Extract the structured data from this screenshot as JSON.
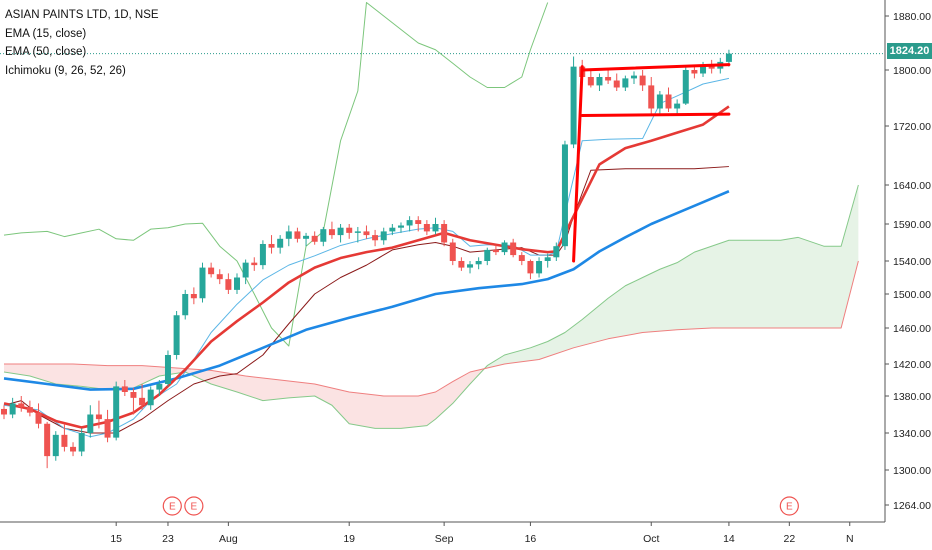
{
  "legend": {
    "title": "ASIAN PAINTS LTD, 1D, NSE",
    "ema15": "EMA (15, close)",
    "ema50": "EMA (50, close)",
    "ichimoku": "Ichimoku (9, 26, 52, 26)"
  },
  "last_price_label": "1824.20",
  "colors": {
    "up": "#26a69a",
    "down": "#ef5350",
    "ema15": "#e53935",
    "ema50": "#1e88e5",
    "conversion": "#5bb6e6",
    "base": "#8b1a1a",
    "lagging": "#7cc67c",
    "leading_a": "#86c98a",
    "leading_b": "#ef7f7f",
    "cloud_bull": "#e6f3e6",
    "cloud_bear": "#fbe3e3",
    "annotation": "#ff0000",
    "last_price": "#2b9b8c"
  },
  "chart_data": {
    "type": "candlestick",
    "title": "ASIAN PAINTS LTD, 1D, NSE",
    "y_axis": {
      "position": "right",
      "ticks": [
        1264,
        1300,
        1340,
        1380,
        1420,
        1460,
        1500,
        1540,
        1590,
        1640,
        1720,
        1800,
        1880
      ],
      "tick_labels": [
        "1264.00",
        "1300.00",
        "1340.00",
        "1380.00",
        "1420.00",
        "1460.00",
        "1500.00",
        "1540.00",
        "1590.00",
        "1640.00",
        "1720.00",
        "1800.00",
        "1880.00"
      ],
      "last_value": 1824.2
    },
    "x_axis": {
      "ticks": [
        {
          "label": "15",
          "bar": 13
        },
        {
          "label": "23",
          "bar": 19
        },
        {
          "label": "Aug",
          "bar": 26
        },
        {
          "label": "19",
          "bar": 40
        },
        {
          "label": "Sep",
          "bar": 51
        },
        {
          "label": "16",
          "bar": 61
        },
        {
          "label": "Oct",
          "bar": 75
        },
        {
          "label": "14",
          "bar": 84
        },
        {
          "label": "22",
          "bar": 91
        },
        {
          "label": "N",
          "bar": 98
        }
      ]
    },
    "earnings_markers": [
      {
        "label": "E",
        "bar": 19.5
      },
      {
        "label": "E",
        "bar": 22
      },
      {
        "label": "E",
        "bar": 91
      }
    ],
    "candles": [
      [
        1366,
        1370,
        1355,
        1360
      ],
      [
        1360,
        1378,
        1356,
        1372
      ],
      [
        1372,
        1380,
        1363,
        1368
      ],
      [
        1368,
        1375,
        1358,
        1362
      ],
      [
        1362,
        1372,
        1345,
        1350
      ],
      [
        1350,
        1352,
        1302,
        1315
      ],
      [
        1315,
        1342,
        1310,
        1338
      ],
      [
        1338,
        1350,
        1320,
        1325
      ],
      [
        1325,
        1330,
        1315,
        1320
      ],
      [
        1320,
        1345,
        1315,
        1340
      ],
      [
        1340,
        1370,
        1335,
        1360
      ],
      [
        1360,
        1375,
        1345,
        1355
      ],
      [
        1355,
        1365,
        1330,
        1335
      ],
      [
        1335,
        1398,
        1332,
        1392
      ],
      [
        1392,
        1400,
        1380,
        1385
      ],
      [
        1385,
        1390,
        1360,
        1378
      ],
      [
        1378,
        1395,
        1365,
        1370
      ],
      [
        1370,
        1392,
        1365,
        1388
      ],
      [
        1388,
        1400,
        1380,
        1395
      ],
      [
        1395,
        1435,
        1392,
        1430
      ],
      [
        1430,
        1480,
        1425,
        1475
      ],
      [
        1475,
        1505,
        1470,
        1500
      ],
      [
        1500,
        1508,
        1488,
        1495
      ],
      [
        1495,
        1538,
        1490,
        1532
      ],
      [
        1532,
        1538,
        1520,
        1524
      ],
      [
        1524,
        1530,
        1512,
        1518
      ],
      [
        1518,
        1525,
        1500,
        1505
      ],
      [
        1505,
        1525,
        1500,
        1520
      ],
      [
        1520,
        1542,
        1512,
        1538
      ],
      [
        1538,
        1545,
        1528,
        1535
      ],
      [
        1535,
        1568,
        1530,
        1563
      ],
      [
        1563,
        1575,
        1550,
        1558
      ],
      [
        1558,
        1575,
        1550,
        1570
      ],
      [
        1570,
        1588,
        1560,
        1580
      ],
      [
        1580,
        1585,
        1565,
        1570
      ],
      [
        1570,
        1578,
        1560,
        1574
      ],
      [
        1574,
        1580,
        1562,
        1566
      ],
      [
        1566,
        1586,
        1560,
        1583
      ],
      [
        1583,
        1593,
        1570,
        1575
      ],
      [
        1575,
        1590,
        1565,
        1585
      ],
      [
        1585,
        1590,
        1570,
        1578
      ],
      [
        1578,
        1586,
        1565,
        1580
      ],
      [
        1580,
        1588,
        1570,
        1575
      ],
      [
        1575,
        1582,
        1560,
        1568
      ],
      [
        1568,
        1585,
        1562,
        1580
      ],
      [
        1580,
        1590,
        1575,
        1585
      ],
      [
        1585,
        1592,
        1578,
        1588
      ],
      [
        1588,
        1600,
        1580,
        1595
      ],
      [
        1595,
        1600,
        1580,
        1590
      ],
      [
        1590,
        1595,
        1575,
        1580
      ],
      [
        1580,
        1598,
        1576,
        1590
      ],
      [
        1590,
        1595,
        1560,
        1565
      ],
      [
        1565,
        1570,
        1535,
        1540
      ],
      [
        1540,
        1545,
        1528,
        1532
      ],
      [
        1532,
        1540,
        1525,
        1536
      ],
      [
        1536,
        1545,
        1530,
        1540
      ],
      [
        1540,
        1558,
        1535,
        1555
      ],
      [
        1555,
        1562,
        1548,
        1552
      ],
      [
        1552,
        1568,
        1548,
        1565
      ],
      [
        1565,
        1570,
        1545,
        1548
      ],
      [
        1548,
        1552,
        1535,
        1540
      ],
      [
        1540,
        1542,
        1518,
        1525
      ],
      [
        1525,
        1545,
        1520,
        1540
      ],
      [
        1540,
        1550,
        1532,
        1545
      ],
      [
        1545,
        1565,
        1540,
        1560
      ],
      [
        1560,
        1700,
        1555,
        1695
      ],
      [
        1695,
        1820,
        1690,
        1805
      ],
      [
        1805,
        1815,
        1785,
        1790
      ],
      [
        1790,
        1800,
        1775,
        1778
      ],
      [
        1778,
        1795,
        1770,
        1790
      ],
      [
        1790,
        1800,
        1780,
        1785
      ],
      [
        1785,
        1795,
        1770,
        1775
      ],
      [
        1775,
        1792,
        1770,
        1788
      ],
      [
        1788,
        1798,
        1780,
        1792
      ],
      [
        1792,
        1800,
        1770,
        1778
      ],
      [
        1778,
        1790,
        1735,
        1745
      ],
      [
        1745,
        1770,
        1735,
        1765
      ],
      [
        1765,
        1775,
        1740,
        1745
      ],
      [
        1745,
        1758,
        1735,
        1752
      ],
      [
        1752,
        1805,
        1750,
        1800
      ],
      [
        1800,
        1808,
        1788,
        1795
      ],
      [
        1795,
        1812,
        1790,
        1808
      ],
      [
        1808,
        1815,
        1795,
        1802
      ],
      [
        1802,
        1818,
        1795,
        1812
      ],
      [
        1812,
        1830,
        1805,
        1824.2
      ]
    ],
    "ema15": [
      [
        0,
        1372
      ],
      [
        3,
        1366
      ],
      [
        6,
        1353
      ],
      [
        9,
        1346
      ],
      [
        12,
        1352
      ],
      [
        15,
        1362
      ],
      [
        18,
        1382
      ],
      [
        21,
        1413
      ],
      [
        24,
        1445
      ],
      [
        27,
        1468
      ],
      [
        30,
        1490
      ],
      [
        33,
        1514
      ],
      [
        36,
        1532
      ],
      [
        39,
        1544
      ],
      [
        42,
        1552
      ],
      [
        45,
        1558
      ],
      [
        48,
        1568
      ],
      [
        51,
        1578
      ],
      [
        54,
        1568
      ],
      [
        57,
        1562
      ],
      [
        60,
        1556
      ],
      [
        63,
        1552
      ],
      [
        64,
        1553
      ],
      [
        66,
        1600
      ],
      [
        69,
        1668
      ],
      [
        72,
        1690
      ],
      [
        75,
        1700
      ],
      [
        78,
        1711
      ],
      [
        81,
        1722
      ],
      [
        84,
        1748
      ]
    ],
    "ema50": [
      [
        0,
        1402
      ],
      [
        5,
        1395
      ],
      [
        10,
        1388
      ],
      [
        15,
        1389
      ],
      [
        20,
        1402
      ],
      [
        25,
        1418
      ],
      [
        30,
        1438
      ],
      [
        35,
        1458
      ],
      [
        40,
        1472
      ],
      [
        45,
        1485
      ],
      [
        50,
        1500
      ],
      [
        55,
        1507
      ],
      [
        60,
        1512
      ],
      [
        63,
        1518
      ],
      [
        66,
        1530
      ],
      [
        69,
        1553
      ],
      [
        72,
        1572
      ],
      [
        75,
        1590
      ],
      [
        78,
        1604
      ],
      [
        81,
        1618
      ],
      [
        84,
        1632
      ]
    ],
    "conversion": [
      [
        0,
        1370
      ],
      [
        4,
        1365
      ],
      [
        7,
        1345
      ],
      [
        10,
        1336
      ],
      [
        12,
        1340
      ],
      [
        15,
        1355
      ],
      [
        17,
        1375
      ],
      [
        20,
        1395
      ],
      [
        22,
        1425
      ],
      [
        24,
        1455
      ],
      [
        27,
        1488
      ],
      [
        30,
        1517
      ],
      [
        33,
        1535
      ],
      [
        36,
        1547
      ],
      [
        39,
        1561
      ],
      [
        42,
        1570
      ],
      [
        45,
        1577
      ],
      [
        48,
        1583
      ],
      [
        50,
        1585
      ],
      [
        52,
        1580
      ],
      [
        54,
        1560
      ],
      [
        56,
        1562
      ],
      [
        59,
        1561
      ],
      [
        61,
        1548
      ],
      [
        63,
        1548
      ],
      [
        64,
        1552
      ],
      [
        65,
        1602
      ],
      [
        67,
        1700
      ],
      [
        70,
        1702
      ],
      [
        74,
        1703
      ],
      [
        76,
        1752
      ],
      [
        78,
        1763
      ],
      [
        81,
        1780
      ],
      [
        84,
        1788
      ]
    ],
    "base_line": [
      [
        0,
        1370
      ],
      [
        2,
        1375
      ],
      [
        4,
        1360
      ],
      [
        7,
        1345
      ],
      [
        10,
        1340
      ],
      [
        13,
        1340
      ],
      [
        16,
        1355
      ],
      [
        19,
        1375
      ],
      [
        22,
        1395
      ],
      [
        25,
        1405
      ],
      [
        27,
        1408
      ],
      [
        30,
        1430
      ],
      [
        33,
        1465
      ],
      [
        36,
        1500
      ],
      [
        39,
        1520
      ],
      [
        42,
        1535
      ],
      [
        45,
        1555
      ],
      [
        48,
        1562
      ],
      [
        50,
        1565
      ],
      [
        52,
        1560
      ],
      [
        54,
        1552
      ],
      [
        58,
        1556
      ],
      [
        60,
        1558
      ],
      [
        62,
        1548
      ],
      [
        64,
        1548
      ],
      [
        65,
        1565
      ],
      [
        66,
        1600
      ],
      [
        68,
        1660
      ],
      [
        72,
        1662
      ],
      [
        76,
        1662
      ],
      [
        80,
        1662
      ],
      [
        84,
        1665
      ]
    ],
    "lagging_span": [
      [
        0,
        1575
      ],
      [
        2,
        1578
      ],
      [
        5,
        1580
      ],
      [
        7,
        1573
      ],
      [
        9,
        1578
      ],
      [
        11,
        1583
      ],
      [
        13,
        1570
      ],
      [
        15,
        1568
      ],
      [
        17,
        1583
      ],
      [
        19,
        1585
      ],
      [
        21,
        1590
      ],
      [
        23,
        1591
      ],
      [
        25,
        1560
      ],
      [
        27,
        1540
      ],
      [
        29,
        1500
      ],
      [
        31,
        1460
      ],
      [
        33,
        1440
      ],
      [
        35,
        1560
      ],
      [
        37,
        1580
      ],
      [
        39,
        1700
      ],
      [
        41,
        1770
      ],
      [
        42,
        1900
      ],
      [
        44,
        1880
      ],
      [
        46,
        1860
      ],
      [
        48,
        1840
      ],
      [
        50,
        1830
      ],
      [
        52,
        1810
      ],
      [
        54,
        1790
      ],
      [
        56,
        1775
      ],
      [
        58,
        1775
      ],
      [
        60,
        1790
      ],
      [
        61,
        1830
      ],
      [
        63,
        1900
      ]
    ],
    "leading_span_a": [
      [
        0,
        1410
      ],
      [
        3,
        1405
      ],
      [
        6,
        1395
      ],
      [
        9,
        1392
      ],
      [
        12,
        1388
      ],
      [
        15,
        1390
      ],
      [
        18,
        1405
      ],
      [
        21,
        1410
      ],
      [
        24,
        1395
      ],
      [
        27,
        1385
      ],
      [
        30,
        1375
      ],
      [
        33,
        1378
      ],
      [
        36,
        1380
      ],
      [
        38,
        1370
      ],
      [
        40,
        1350
      ],
      [
        43,
        1345
      ],
      [
        46,
        1345
      ],
      [
        49,
        1348
      ],
      [
        50,
        1355
      ],
      [
        52,
        1372
      ],
      [
        54,
        1395
      ],
      [
        56,
        1418
      ],
      [
        58,
        1430
      ],
      [
        61,
        1438
      ],
      [
        63,
        1445
      ],
      [
        65,
        1455
      ],
      [
        67,
        1470
      ],
      [
        70,
        1495
      ],
      [
        72,
        1510
      ],
      [
        74,
        1520
      ],
      [
        76,
        1530
      ],
      [
        78,
        1538
      ],
      [
        80,
        1552
      ],
      [
        84,
        1568
      ],
      [
        88,
        1568
      ],
      [
        90,
        1568
      ],
      [
        92,
        1572
      ],
      [
        95,
        1560
      ],
      [
        97,
        1560
      ],
      [
        99,
        1640
      ]
    ],
    "leading_span_b": [
      [
        0,
        1420
      ],
      [
        4,
        1420
      ],
      [
        8,
        1420
      ],
      [
        12,
        1418
      ],
      [
        16,
        1418
      ],
      [
        20,
        1415
      ],
      [
        24,
        1412
      ],
      [
        28,
        1405
      ],
      [
        32,
        1400
      ],
      [
        36,
        1395
      ],
      [
        40,
        1385
      ],
      [
        44,
        1380
      ],
      [
        48,
        1380
      ],
      [
        50,
        1385
      ],
      [
        52,
        1398
      ],
      [
        54,
        1410
      ],
      [
        58,
        1420
      ],
      [
        62,
        1425
      ],
      [
        66,
        1438
      ],
      [
        70,
        1448
      ],
      [
        74,
        1455
      ],
      [
        78,
        1458
      ],
      [
        82,
        1460
      ],
      [
        86,
        1460
      ],
      [
        90,
        1460
      ],
      [
        94,
        1460
      ],
      [
        97,
        1460
      ],
      [
        99,
        1540
      ]
    ],
    "trendlines": [
      {
        "from": [
          67,
          1800
        ],
        "to": [
          84,
          1808
        ]
      },
      {
        "from": [
          67,
          1735
        ],
        "to": [
          84,
          1737
        ]
      },
      {
        "from": [
          66,
          1540
        ],
        "to": [
          67,
          1805
        ]
      }
    ]
  }
}
